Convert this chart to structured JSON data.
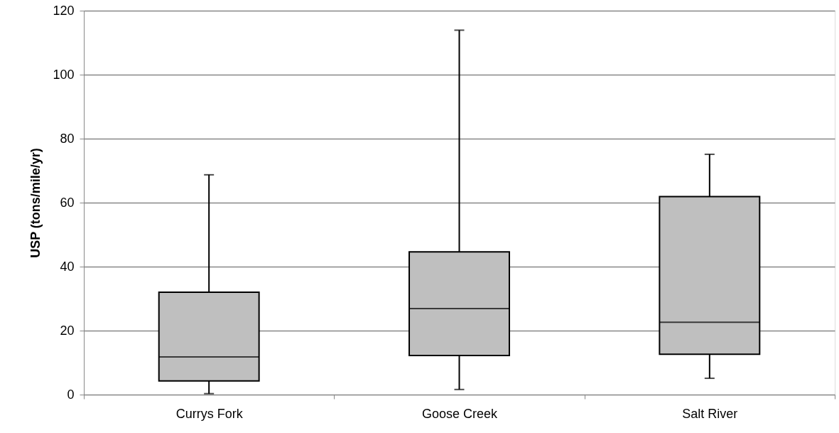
{
  "chart_data": {
    "type": "box",
    "ylabel": "USP (tons/mile/yr)",
    "categories": [
      "Currys Fork",
      "Goose Creek",
      "Salt River"
    ],
    "series": [
      {
        "color": "#bfbfbf",
        "boxes": [
          {
            "low": 0.3,
            "q1": 4.3,
            "median": 11.8,
            "q3": 32.0,
            "high": 68.7
          },
          {
            "low": 1.6,
            "q1": 12.2,
            "median": 26.9,
            "q3": 44.6,
            "high": 113.9
          },
          {
            "low": 5.1,
            "q1": 12.6,
            "median": 22.6,
            "q3": 61.9,
            "high": 75.1
          }
        ]
      }
    ],
    "ylim": [
      0,
      120
    ],
    "yticks": [
      0,
      20,
      40,
      60,
      80,
      100,
      120
    ],
    "grid": "y"
  }
}
